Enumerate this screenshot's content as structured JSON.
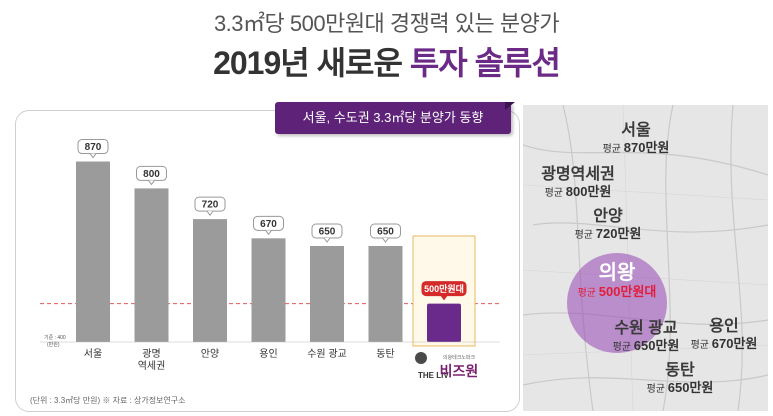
{
  "header": {
    "subtitle": "3.3㎡당 500만원대 경쟁력 있는 분양가",
    "title_main": "2019년 새로운 ",
    "title_accent": "투자 솔루션"
  },
  "banner": {
    "label": "서울, 수도권 3.3㎡당 분양가 동향"
  },
  "colors": {
    "bar": "#9b9b9b",
    "highlight_bar": "#6a2a8c",
    "dashed_line": "#e35a5a",
    "banner": "#5e2378"
  },
  "chart_data": {
    "type": "bar",
    "categories": [
      "서울",
      "광명\n역세권",
      "안양",
      "용인",
      "수원 광교",
      "동탄",
      "THE LIV 비즈원"
    ],
    "values": [
      870,
      800,
      720,
      670,
      650,
      650,
      500
    ],
    "value_labels": [
      "870",
      "800",
      "720",
      "670",
      "650",
      "650",
      "500만원대"
    ],
    "highlight_index": 6,
    "ylim": [
      400,
      900
    ],
    "reference_line": 500,
    "baseline_label": "기준 : 400",
    "baseline_unit": "(만원)",
    "note": "(단위 : 3.3㎡당 만원) ※ 자료 : 상가정보연구소",
    "logo_theliv": "THE LIV",
    "logo_small": "의왕테크노파크",
    "logo_brand": "비즈원"
  },
  "map": {
    "labels": [
      {
        "city": "서울",
        "avg": "평균 ",
        "price": "870만원"
      },
      {
        "city": "광명역세권",
        "avg": "평균 ",
        "price": "800만원"
      },
      {
        "city": "안양",
        "avg": "평균 ",
        "price": "720만원"
      },
      {
        "city": "의왕",
        "avg": "평균 ",
        "price": "500만원대"
      },
      {
        "city": "수원 광교",
        "avg": "평균 ",
        "price": "650만원"
      },
      {
        "city": "용인",
        "avg": "평균 ",
        "price": "670만원"
      },
      {
        "city": "동탄",
        "avg": "평균 ",
        "price": "650만원"
      }
    ]
  }
}
